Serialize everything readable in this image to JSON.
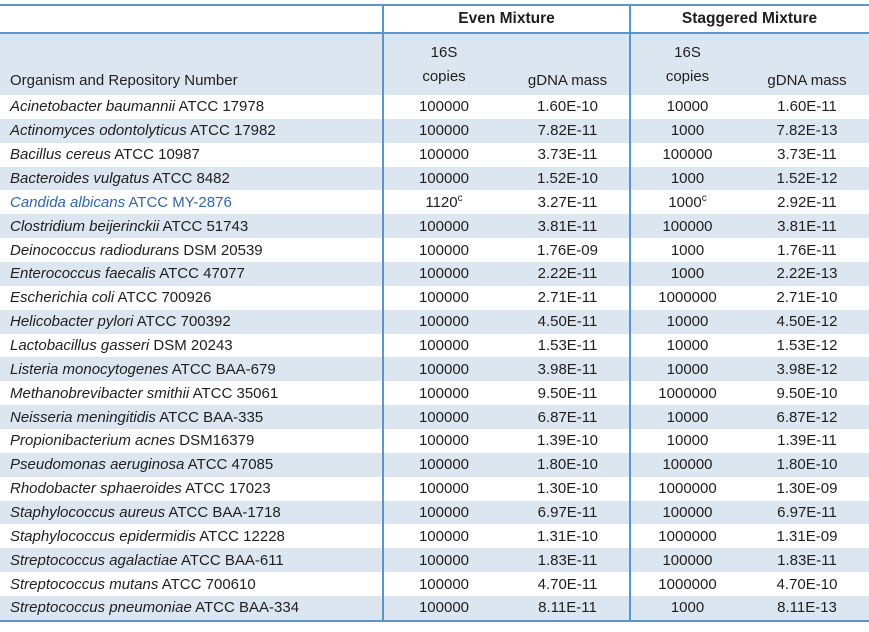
{
  "table": {
    "columns": {
      "organism": "Organism and Repository Number",
      "group_even": "Even Mixture",
      "group_staggered": "Staggered Mixture",
      "sub_16s_line1": "16S",
      "sub_16s_line2": "copies",
      "sub_gdna": "gDNA mass"
    },
    "rows": [
      {
        "organism": "Acinetobacter baumannii",
        "repository": "ATCC 17978",
        "even_copies": "100000",
        "even_gdna": "1.60E-10",
        "stag_copies": "10000",
        "stag_gdna": "1.60E-11",
        "accent": false
      },
      {
        "organism": "Actinomyces odontolyticus",
        "repository": "ATCC 17982",
        "even_copies": "100000",
        "even_gdna": "7.82E-11",
        "stag_copies": "1000",
        "stag_gdna": "7.82E-13",
        "accent": false
      },
      {
        "organism": "Bacillus cereus",
        "repository": "ATCC 10987",
        "even_copies": "100000",
        "even_gdna": "3.73E-11",
        "stag_copies": "100000",
        "stag_gdna": "3.73E-11",
        "accent": false
      },
      {
        "organism": "Bacteroides vulgatus",
        "repository": "ATCC 8482",
        "even_copies": "100000",
        "even_gdna": "1.52E-10",
        "stag_copies": "1000",
        "stag_gdna": "1.52E-12",
        "accent": false
      },
      {
        "organism": "Candida albicans",
        "repository": "ATCC MY-2876",
        "even_copies": "1120",
        "even_copies_sup": "c",
        "even_gdna": "3.27E-11",
        "stag_copies": "1000",
        "stag_copies_sup": "c",
        "stag_gdna": "2.92E-11",
        "accent": true
      },
      {
        "organism": "Clostridium beijerinckii",
        "repository": "ATCC 51743",
        "even_copies": "100000",
        "even_gdna": "3.81E-11",
        "stag_copies": "100000",
        "stag_gdna": "3.81E-11",
        "accent": false
      },
      {
        "organism": "Deinococcus radiodurans",
        "repository": "DSM 20539",
        "even_copies": "100000",
        "even_gdna": "1.76E-09",
        "stag_copies": "1000",
        "stag_gdna": "1.76E-11",
        "accent": false
      },
      {
        "organism": "Enterococcus faecalis",
        "repository": "ATCC 47077",
        "even_copies": "100000",
        "even_gdna": "2.22E-11",
        "stag_copies": "1000",
        "stag_gdna": "2.22E-13",
        "accent": false
      },
      {
        "organism": "Escherichia coli",
        "repository": "ATCC 700926",
        "even_copies": "100000",
        "even_gdna": "2.71E-11",
        "stag_copies": "1000000",
        "stag_gdna": "2.71E-10",
        "accent": false
      },
      {
        "organism": "Helicobacter pylori",
        "repository": "ATCC 700392",
        "even_copies": "100000",
        "even_gdna": "4.50E-11",
        "stag_copies": "10000",
        "stag_gdna": "4.50E-12",
        "accent": false
      },
      {
        "organism": "Lactobacillus gasseri",
        "repository": "DSM 20243",
        "even_copies": "100000",
        "even_gdna": "1.53E-11",
        "stag_copies": "10000",
        "stag_gdna": "1.53E-12",
        "accent": false
      },
      {
        "organism": "Listeria monocytogenes",
        "repository": "ATCC BAA-679",
        "even_copies": "100000",
        "even_gdna": "3.98E-11",
        "stag_copies": "10000",
        "stag_gdna": "3.98E-12",
        "accent": false
      },
      {
        "organism": "Methanobrevibacter smithii",
        "repository": "ATCC 35061",
        "even_copies": "100000",
        "even_gdna": "9.50E-11",
        "stag_copies": "1000000",
        "stag_gdna": "9.50E-10",
        "accent": false
      },
      {
        "organism": "Neisseria meningitidis",
        "repository": "ATCC BAA-335",
        "even_copies": "100000",
        "even_gdna": "6.87E-11",
        "stag_copies": "10000",
        "stag_gdna": "6.87E-12",
        "accent": false
      },
      {
        "organism": "Propionibacterium acnes",
        "repository": "DSM16379",
        "even_copies": "100000",
        "even_gdna": "1.39E-10",
        "stag_copies": "10000",
        "stag_gdna": "1.39E-11",
        "accent": false
      },
      {
        "organism": "Pseudomonas aeruginosa",
        "repository": "ATCC 47085",
        "even_copies": "100000",
        "even_gdna": "1.80E-10",
        "stag_copies": "100000",
        "stag_gdna": "1.80E-10",
        "accent": false
      },
      {
        "organism": "Rhodobacter sphaeroides",
        "repository": "ATCC 17023",
        "even_copies": "100000",
        "even_gdna": "1.30E-10",
        "stag_copies": "1000000",
        "stag_gdna": "1.30E-09",
        "accent": false
      },
      {
        "organism": "Staphylococcus aureus",
        "repository": "ATCC BAA-1718",
        "even_copies": "100000",
        "even_gdna": "6.97E-11",
        "stag_copies": "100000",
        "stag_gdna": "6.97E-11",
        "accent": false
      },
      {
        "organism": "Staphylococcus epidermidis",
        "repository": "ATCC 12228",
        "even_copies": "100000",
        "even_gdna": "1.31E-10",
        "stag_copies": "1000000",
        "stag_gdna": "1.31E-09",
        "accent": false
      },
      {
        "organism": "Streptococcus agalactiae",
        "repository": "ATCC BAA-611",
        "even_copies": "100000",
        "even_gdna": "1.83E-11",
        "stag_copies": "100000",
        "stag_gdna": "1.83E-11",
        "accent": false
      },
      {
        "organism": "Streptococcus mutans",
        "repository": "ATCC 700610",
        "even_copies": "100000",
        "even_gdna": "4.70E-11",
        "stag_copies": "1000000",
        "stag_gdna": "4.70E-10",
        "accent": false
      },
      {
        "organism": "Streptococcus pneumoniae",
        "repository": "ATCC BAA-334",
        "even_copies": "100000",
        "even_gdna": "8.11E-11",
        "stag_copies": "1000",
        "stag_gdna": "8.11E-13",
        "accent": false
      }
    ]
  },
  "colors": {
    "border_blue": "#5a96cd",
    "row_stripe": "#dce6f1",
    "accent_text": "#3566a5",
    "text": "#1f1f1f"
  }
}
